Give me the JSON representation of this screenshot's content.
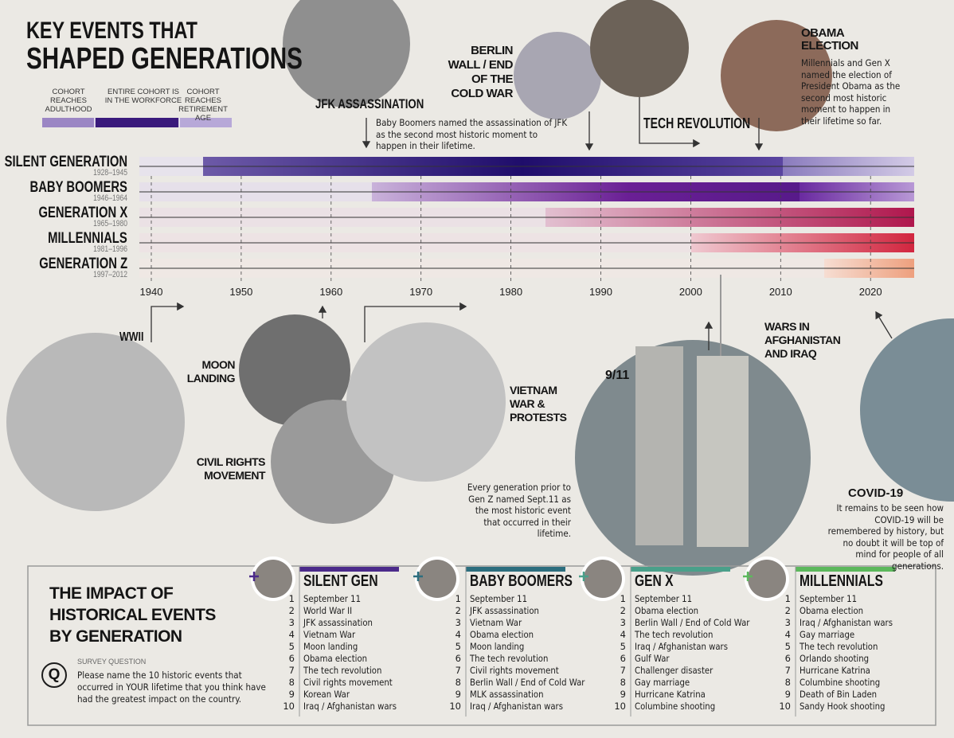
{
  "header": {
    "title": [
      "KEY EVENTS THAT",
      "SHAPED GENERATIONS"
    ]
  },
  "legend": [
    "COHORT REACHES ADULTHOOD",
    "ENTIRE COHORT IS IN THE WORKFORCE",
    "COHORT REACHES RETIREMENT AGE"
  ],
  "generations": [
    {
      "name": "SILENT GENERATION",
      "years": "1928–1945"
    },
    {
      "name": "BABY BOOMERS",
      "years": "1946–1964"
    },
    {
      "name": "GENERATION X",
      "years": "1965–1980"
    },
    {
      "name": "MILLENNIALS",
      "years": "1981–1996"
    },
    {
      "name": "GENERATION Z",
      "years": "1997–2012"
    }
  ],
  "axis_years": [
    1940,
    1950,
    1960,
    1970,
    1980,
    1990,
    2000,
    2010,
    2020
  ],
  "events_top": [
    {
      "label": "JFK ASSASSINATION",
      "note": "Baby Boomers named the assassination of JFK as the second most historic moment to happen in their lifetime."
    },
    {
      "label": "BERLIN WALL / END OF THE COLD WAR"
    },
    {
      "label": "TECH REVOLUTION"
    },
    {
      "label": "OBAMA ELECTION",
      "note": "Millennials and Gen X named the election of President Obama as the second most historic moment to happen in their lifetime so far."
    }
  ],
  "events_bottom": [
    {
      "label": "WWII"
    },
    {
      "label": "MOON LANDING"
    },
    {
      "label": "CIVIL RIGHTS MOVEMENT"
    },
    {
      "label": "VIETNAM WAR & PROTESTS"
    },
    {
      "label": "9/11",
      "note": "Every generation prior to Gen Z named Sept.11 as the most historic event that occurred in their lifetime."
    },
    {
      "label": "WARS IN AFGHANISTAN AND IRAQ"
    },
    {
      "label": "COVID-19",
      "note": "It remains to be seen how COVID-19 will be remembered by history, but no doubt it will be top of mind for people of all generations."
    }
  ],
  "impact": {
    "title": "THE IMPACT OF HISTORICAL EVENTS BY GENERATION",
    "survey_label": "SURVEY QUESTION",
    "q": "Q",
    "question": "Please name the 10 historic events that occurred in YOUR lifetime that you think have had the greatest impact on the country.",
    "ranks": [
      1,
      2,
      3,
      4,
      5,
      6,
      7,
      8,
      9,
      10
    ],
    "columns": [
      {
        "name": "SILENT GEN",
        "items": [
          "September 11",
          "World War II",
          "JFK assassination",
          "Vietnam War",
          "Moon landing",
          "Obama election",
          "The tech revolution",
          "Civil rights movement",
          "Korean War",
          "Iraq / Afghanistan wars"
        ]
      },
      {
        "name": "BABY BOOMERS",
        "items": [
          "September 11",
          "JFK assassination",
          "Vietnam War",
          "Obama election",
          "Moon landing",
          "The tech revolution",
          "Civil rights movement",
          "Berlin Wall / End of Cold War",
          "MLK assassination",
          "Iraq / Afghanistan wars"
        ]
      },
      {
        "name": "GEN X",
        "items": [
          "September 11",
          "Obama election",
          "Berlin Wall / End of Cold War",
          "The tech revolution",
          "Iraq / Afghanistan wars",
          "Gulf War",
          "Challenger disaster",
          "Gay marriage",
          "Hurricane Katrina",
          "Columbine shooting"
        ]
      },
      {
        "name": "MILLENNIALS",
        "items": [
          "September 11",
          "Obama election",
          "Iraq / Afghanistan wars",
          "Gay marriage",
          "The tech revolution",
          "Orlando shooting",
          "Hurricane Katrina",
          "Columbine shooting",
          "Death of Bin Laden",
          "Sandy Hook shooting"
        ]
      }
    ]
  }
}
